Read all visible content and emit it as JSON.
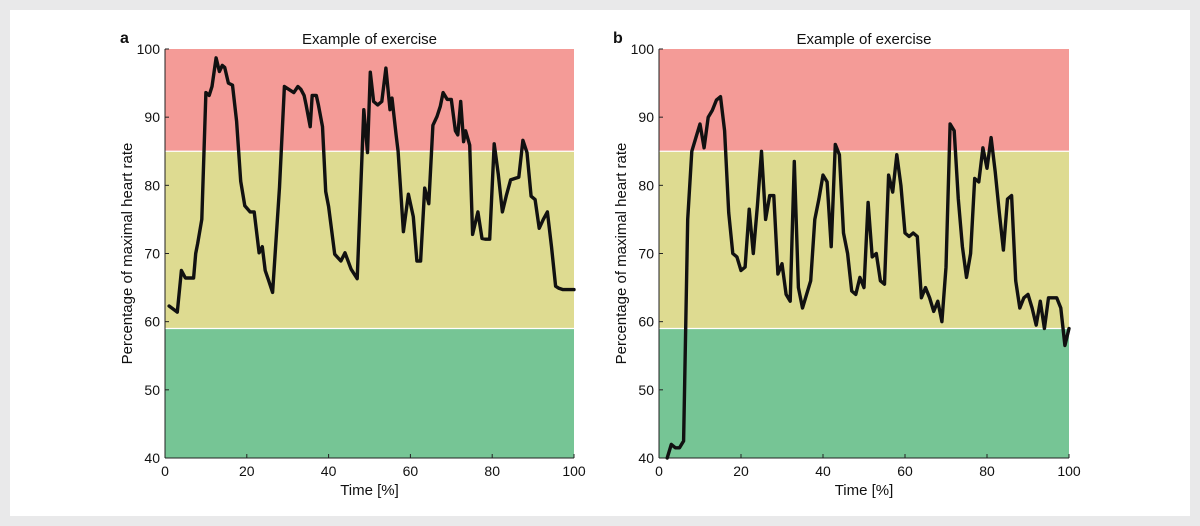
{
  "chart_data": [
    {
      "panel_label": "a",
      "type": "line",
      "title": "Example of exercise",
      "xlabel": "Time [%]",
      "ylabel": "Percentage of maximal heart rate",
      "xlim": [
        0,
        100
      ],
      "ylim": [
        40,
        100
      ],
      "xticks": [
        "0",
        "20",
        "40",
        "60",
        "80",
        "100"
      ],
      "yticks": [
        "40",
        "50",
        "60",
        "70",
        "80",
        "90",
        "100"
      ],
      "zones": [
        {
          "from": 85,
          "to": 100,
          "color": "#f49b97"
        },
        {
          "from": 59,
          "to": 85,
          "color": "#dedb91"
        },
        {
          "from": 40,
          "to": 59,
          "color": "#76c595"
        }
      ],
      "line_color": "#111111",
      "series": [
        {
          "x": [
            1,
            3,
            4,
            5,
            7,
            7.5,
            8,
            9,
            10,
            10.8,
            11.5,
            12.5,
            13.3,
            14,
            14.6,
            15.5,
            16.5,
            17.5,
            18.5,
            19.5,
            20.8,
            21.8,
            23,
            23.8,
            24.5,
            25.3,
            26.3,
            28,
            29.2,
            30.2,
            31.5,
            32.5,
            33.2,
            34,
            34.5,
            35.5,
            36,
            37,
            37.5,
            38.5,
            39.3,
            40,
            41.5,
            43,
            44,
            45.5,
            47,
            48.6,
            49.5,
            50.2,
            51,
            52,
            53,
            54,
            55,
            55.5,
            56.5,
            57,
            58.3,
            59.5,
            60.7,
            61.6,
            62.5,
            63.5,
            64.5,
            65.5,
            66.5,
            67.3,
            68,
            69,
            70,
            71,
            71.6,
            72.3,
            73,
            73.5,
            74.5,
            75.2,
            76.5,
            77.5,
            78.4,
            79.4,
            80.5,
            81.5,
            82.5,
            83.5,
            84.5,
            85.5,
            86.5,
            87.5,
            88.5,
            89.5,
            90.5,
            91.5,
            92.5,
            93.5,
            94.5,
            95.5,
            96.3,
            97.3,
            98.3,
            100
          ],
          "y": [
            62.3,
            61.4,
            67.5,
            66.4,
            66.4,
            70,
            71.5,
            75,
            93.6,
            93.2,
            94.5,
            98.7,
            96.7,
            97.6,
            97.3,
            95,
            94.7,
            89.4,
            80.6,
            77,
            76.1,
            76.1,
            70.1,
            71,
            67.5,
            66.1,
            64.3,
            79.7,
            94.5,
            94.1,
            93.6,
            94.5,
            94.1,
            93.2,
            91.8,
            88.6,
            93.2,
            93.2,
            91.8,
            88.6,
            79.1,
            76.9,
            69.9,
            68.9,
            70.1,
            67.7,
            66.3,
            91.1,
            84.8,
            96.6,
            92.3,
            91.8,
            92.3,
            97.2,
            91.1,
            92.8,
            87.4,
            85,
            73.2,
            78.7,
            75.4,
            68.9,
            68.9,
            79.6,
            77.3,
            88.8,
            90.1,
            91.6,
            93.6,
            92.6,
            92.6,
            88,
            87.4,
            92.3,
            86.4,
            88,
            85.9,
            72.8,
            76.1,
            72.2,
            72.1,
            72.1,
            86.1,
            81.6,
            76.1,
            78.6,
            80.8,
            81,
            81.2,
            86.6,
            84.8,
            78.4,
            77.9,
            73.7,
            75,
            76.1,
            71,
            65.2,
            64.9,
            64.7,
            64.7,
            64.7
          ]
        }
      ]
    },
    {
      "panel_label": "b",
      "type": "line",
      "title": "Example of exercise",
      "xlabel": "Time [%]",
      "ylabel": "Percentage of maximal heart rate",
      "xlim": [
        0,
        100
      ],
      "ylim": [
        40,
        100
      ],
      "xticks": [
        "0",
        "20",
        "40",
        "60",
        "80",
        "100"
      ],
      "yticks": [
        "40",
        "50",
        "60",
        "70",
        "80",
        "90",
        "100"
      ],
      "zones": [
        {
          "from": 85,
          "to": 100,
          "color": "#f49b97"
        },
        {
          "from": 59,
          "to": 85,
          "color": "#dedb91"
        },
        {
          "from": 40,
          "to": 59,
          "color": "#76c595"
        }
      ],
      "line_color": "#111111",
      "series": [
        {
          "x": [
            2,
            3,
            4,
            5,
            6,
            7,
            8,
            9,
            10,
            11,
            12,
            13,
            14,
            15,
            16,
            17,
            18,
            19,
            20,
            21,
            22,
            23,
            24,
            25,
            26,
            27,
            28,
            29,
            30,
            31,
            32,
            33,
            34,
            35,
            36,
            37,
            38,
            39,
            40,
            41,
            42,
            43,
            44,
            45,
            46,
            47,
            48,
            49,
            50,
            51,
            52,
            53,
            54,
            55,
            56,
            57,
            58,
            59,
            60,
            61,
            62,
            63,
            64,
            65,
            66,
            67,
            68,
            69,
            70,
            71,
            72,
            73,
            74,
            75,
            76,
            77,
            78,
            79,
            80,
            81,
            82,
            83,
            84,
            85,
            86,
            87,
            88,
            89,
            90,
            91,
            92,
            93,
            94,
            95,
            96,
            97,
            98,
            99,
            100
          ],
          "y": [
            40,
            42,
            41.5,
            41.5,
            42.5,
            75,
            85,
            87,
            89,
            85.5,
            90,
            91,
            92.5,
            93,
            88,
            76,
            70,
            69.5,
            67.5,
            68,
            76.5,
            70,
            77,
            85,
            75,
            78.5,
            78.5,
            67,
            68.5,
            64,
            63,
            83.5,
            65,
            62,
            64,
            66,
            75,
            78,
            81.5,
            80.5,
            71,
            86,
            84.5,
            73,
            70,
            64.5,
            64,
            66.5,
            65,
            77.5,
            69.5,
            70,
            66,
            65.5,
            81.5,
            79,
            84.5,
            80,
            73,
            72.5,
            73,
            72.5,
            63.5,
            65,
            63.5,
            61.5,
            63,
            60,
            68,
            89,
            88,
            78,
            71,
            66.5,
            70,
            81,
            80.5,
            85.5,
            82.5,
            87,
            82,
            76,
            70.5,
            78,
            78.5,
            66,
            62,
            63.5,
            64,
            62,
            59.5,
            63,
            59,
            63.5,
            63.5,
            63.5,
            62,
            56.5,
            59
          ]
        }
      ]
    }
  ]
}
